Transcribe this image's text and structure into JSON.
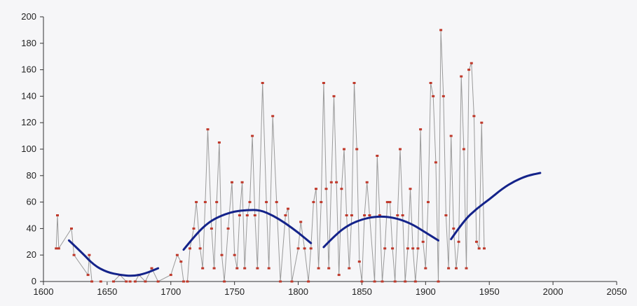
{
  "chart_data": {
    "type": "line",
    "title": "",
    "xlabel": "",
    "ylabel": "",
    "xlim": [
      1600,
      2050
    ],
    "ylim": [
      0,
      200
    ],
    "x_ticks": [
      1600,
      1650,
      1700,
      1750,
      1800,
      1850,
      1900,
      1950,
      2000,
      2050
    ],
    "y_ticks": [
      0,
      20,
      40,
      60,
      80,
      100,
      120,
      140,
      160,
      180,
      200
    ],
    "grid": false,
    "legend": "none",
    "colors": {
      "series": "#9a9a9a",
      "points": "#c0392b",
      "trend": "#14238a"
    },
    "series": [
      {
        "type": "line-with-markers",
        "points": [
          [
            1610,
            25
          ],
          [
            1611,
            50
          ],
          [
            1612,
            25
          ],
          [
            1622,
            40
          ],
          [
            1624,
            20
          ],
          [
            1635,
            5
          ],
          [
            1636,
            20
          ],
          [
            1638,
            0
          ],
          [
            1645,
            0
          ],
          [
            1655,
            0
          ],
          [
            1660,
            5
          ],
          [
            1665,
            0
          ],
          [
            1668,
            0
          ],
          [
            1672,
            0
          ],
          [
            1675,
            5
          ],
          [
            1680,
            0
          ],
          [
            1685,
            10
          ],
          [
            1690,
            0
          ],
          [
            1700,
            5
          ],
          [
            1705,
            20
          ],
          [
            1708,
            15
          ],
          [
            1710,
            0
          ],
          [
            1713,
            0
          ],
          [
            1715,
            25
          ],
          [
            1718,
            40
          ],
          [
            1720,
            60
          ],
          [
            1723,
            25
          ],
          [
            1725,
            10
          ],
          [
            1727,
            60
          ],
          [
            1729,
            115
          ],
          [
            1732,
            40
          ],
          [
            1734,
            10
          ],
          [
            1736,
            60
          ],
          [
            1738,
            105
          ],
          [
            1740,
            20
          ],
          [
            1742,
            0
          ],
          [
            1745,
            40
          ],
          [
            1748,
            75
          ],
          [
            1750,
            20
          ],
          [
            1752,
            10
          ],
          [
            1754,
            50
          ],
          [
            1756,
            75
          ],
          [
            1758,
            10
          ],
          [
            1760,
            50
          ],
          [
            1762,
            60
          ],
          [
            1764,
            110
          ],
          [
            1766,
            50
          ],
          [
            1768,
            10
          ],
          [
            1772,
            150
          ],
          [
            1775,
            60
          ],
          [
            1777,
            10
          ],
          [
            1780,
            125
          ],
          [
            1783,
            60
          ],
          [
            1786,
            0
          ],
          [
            1790,
            50
          ],
          [
            1792,
            55
          ],
          [
            1795,
            0
          ],
          [
            1800,
            25
          ],
          [
            1802,
            45
          ],
          [
            1805,
            25
          ],
          [
            1808,
            0
          ],
          [
            1810,
            25
          ],
          [
            1812,
            60
          ],
          [
            1814,
            70
          ],
          [
            1816,
            10
          ],
          [
            1818,
            60
          ],
          [
            1820,
            150
          ],
          [
            1822,
            70
          ],
          [
            1824,
            10
          ],
          [
            1826,
            75
          ],
          [
            1828,
            140
          ],
          [
            1830,
            75
          ],
          [
            1832,
            5
          ],
          [
            1834,
            70
          ],
          [
            1836,
            100
          ],
          [
            1838,
            50
          ],
          [
            1840,
            10
          ],
          [
            1842,
            50
          ],
          [
            1844,
            150
          ],
          [
            1846,
            100
          ],
          [
            1848,
            15
          ],
          [
            1850,
            0
          ],
          [
            1852,
            50
          ],
          [
            1854,
            75
          ],
          [
            1856,
            50
          ],
          [
            1860,
            0
          ],
          [
            1862,
            95
          ],
          [
            1864,
            50
          ],
          [
            1866,
            0
          ],
          [
            1868,
            25
          ],
          [
            1870,
            60
          ],
          [
            1872,
            60
          ],
          [
            1874,
            25
          ],
          [
            1876,
            0
          ],
          [
            1878,
            50
          ],
          [
            1880,
            100
          ],
          [
            1882,
            50
          ],
          [
            1884,
            0
          ],
          [
            1886,
            25
          ],
          [
            1888,
            70
          ],
          [
            1890,
            25
          ],
          [
            1892,
            0
          ],
          [
            1894,
            25
          ],
          [
            1896,
            115
          ],
          [
            1898,
            30
          ],
          [
            1900,
            10
          ],
          [
            1902,
            60
          ],
          [
            1904,
            150
          ],
          [
            1906,
            140
          ],
          [
            1908,
            90
          ],
          [
            1910,
            0
          ],
          [
            1912,
            190
          ],
          [
            1914,
            140
          ],
          [
            1916,
            50
          ],
          [
            1918,
            10
          ],
          [
            1920,
            110
          ],
          [
            1922,
            40
          ],
          [
            1924,
            10
          ],
          [
            1926,
            30
          ],
          [
            1928,
            155
          ],
          [
            1930,
            100
          ],
          [
            1932,
            10
          ],
          [
            1934,
            160
          ],
          [
            1936,
            165
          ],
          [
            1938,
            125
          ],
          [
            1940,
            30
          ],
          [
            1942,
            25
          ],
          [
            1944,
            120
          ],
          [
            1946,
            25
          ]
        ]
      }
    ],
    "trend_segments": [
      [
        [
          1620,
          31
        ],
        [
          1630,
          22
        ],
        [
          1640,
          12
        ],
        [
          1650,
          7
        ],
        [
          1660,
          5
        ],
        [
          1670,
          4
        ],
        [
          1680,
          6
        ],
        [
          1690,
          10
        ]
      ],
      [
        [
          1710,
          24
        ],
        [
          1720,
          36
        ],
        [
          1730,
          45
        ],
        [
          1740,
          50
        ],
        [
          1750,
          53
        ],
        [
          1760,
          54
        ],
        [
          1770,
          54
        ],
        [
          1780,
          50
        ],
        [
          1790,
          44
        ],
        [
          1800,
          37
        ],
        [
          1810,
          29
        ]
      ],
      [
        [
          1820,
          26
        ],
        [
          1830,
          36
        ],
        [
          1840,
          43
        ],
        [
          1850,
          47
        ],
        [
          1860,
          49
        ],
        [
          1870,
          49
        ],
        [
          1880,
          47
        ],
        [
          1890,
          43
        ],
        [
          1900,
          37
        ],
        [
          1910,
          31
        ]
      ],
      [
        [
          1920,
          32
        ],
        [
          1930,
          46
        ],
        [
          1940,
          55
        ],
        [
          1950,
          62
        ],
        [
          1960,
          70
        ],
        [
          1970,
          76
        ],
        [
          1980,
          80
        ],
        [
          1990,
          82
        ]
      ]
    ]
  }
}
